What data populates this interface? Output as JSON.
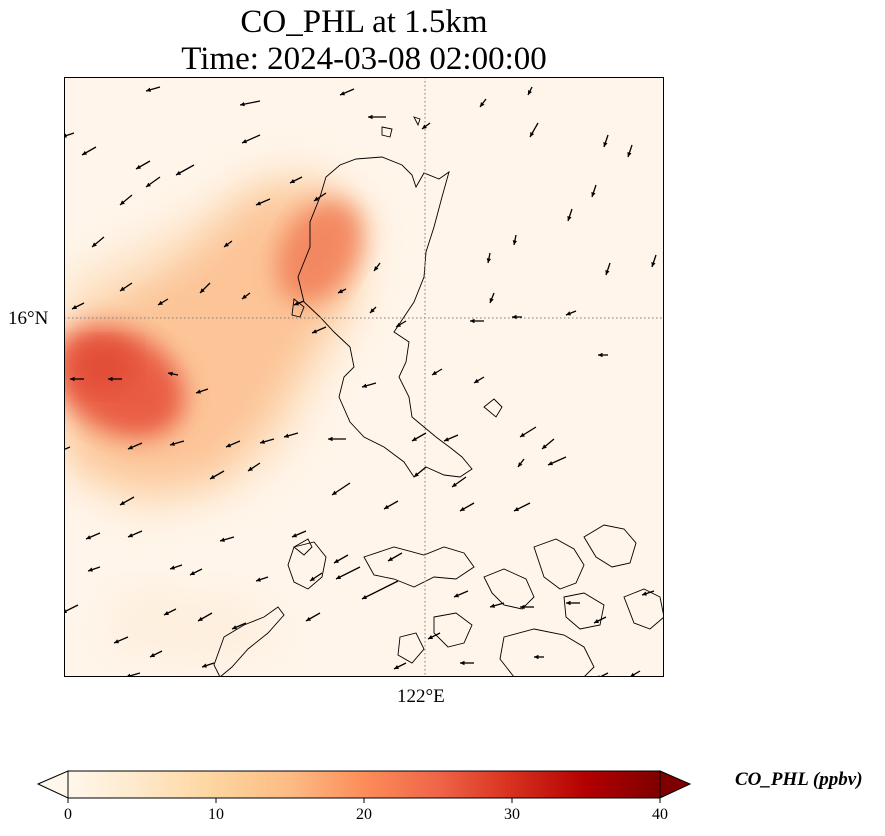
{
  "title": {
    "line1": "CO_PHL at 1.5km",
    "line2": "Time: 2024-03-08 02:00:00"
  },
  "map": {
    "latitude_gridline_label": "16°N",
    "longitude_gridline_label": "122°E",
    "gridline_style": "dotted gray",
    "field_description": "CO_PHL concentration shading with wind vectors",
    "wind_arrow_color": "#000000",
    "coastline_color": "#000000"
  },
  "colorbar": {
    "label": "CO_PHL (ppbv)",
    "colormap": "OrRd",
    "min": 0,
    "max": 40,
    "extend": "both",
    "ticks": [
      "0",
      "10",
      "20",
      "30",
      "40"
    ],
    "colors": [
      "#fff7ec",
      "#fee8c8",
      "#fdd49e",
      "#fdbb84",
      "#fc8d59",
      "#ef6548",
      "#d7301f",
      "#b30000",
      "#7f0000"
    ]
  }
}
